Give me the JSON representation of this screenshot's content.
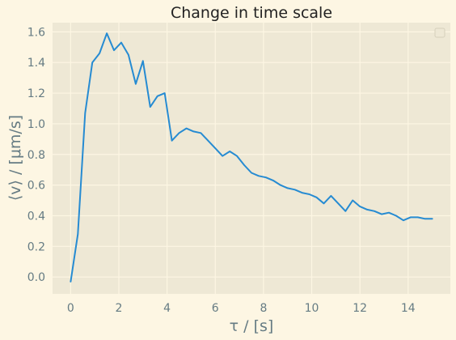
{
  "chart_data": {
    "type": "line",
    "title": "Change in time scale",
    "xlabel": "τ / [s]",
    "ylabel": "⟨v⟩ / [μm/s]",
    "xlim": [
      -0.75,
      15.75
    ],
    "ylim": [
      -0.11,
      1.66
    ],
    "xticks": [
      0,
      2,
      4,
      6,
      8,
      10,
      12,
      14
    ],
    "xtick_labels": [
      "0",
      "2",
      "4",
      "6",
      "8",
      "10",
      "12",
      "14"
    ],
    "yticks": [
      0.0,
      0.2,
      0.4,
      0.6,
      0.8,
      1.0,
      1.2,
      1.4,
      1.6
    ],
    "ytick_labels": [
      "0.0",
      "0.2",
      "0.4",
      "0.6",
      "0.8",
      "1.0",
      "1.2",
      "1.4",
      "1.6"
    ],
    "grid": true,
    "legend": "top-right",
    "colors": {
      "background": "#fdf6e3",
      "plot_background": "#eee8d5",
      "grid": "#fdf6e3",
      "line": "#268bd2",
      "text": "#657b83",
      "title": "#222222"
    },
    "series": [
      {
        "x": [
          0.0,
          0.3,
          0.6,
          0.9,
          1.2,
          1.5,
          1.8,
          2.1,
          2.4,
          2.7,
          3.0,
          3.3,
          3.6,
          3.9,
          4.2,
          4.5,
          4.8,
          5.1,
          5.4,
          5.7,
          6.0,
          6.3,
          6.6,
          6.9,
          7.2,
          7.5,
          7.8,
          8.1,
          8.4,
          8.7,
          9.0,
          9.3,
          9.6,
          9.9,
          10.2,
          10.5,
          10.8,
          11.1,
          11.4,
          11.7,
          12.0,
          12.3,
          12.6,
          12.9,
          13.2,
          13.5,
          13.8,
          14.1,
          14.4,
          14.7,
          15.0
        ],
        "values": [
          -0.03,
          0.28,
          1.07,
          1.4,
          1.46,
          1.59,
          1.48,
          1.53,
          1.45,
          1.26,
          1.41,
          1.11,
          1.18,
          1.2,
          0.89,
          0.94,
          0.97,
          0.95,
          0.94,
          0.89,
          0.84,
          0.79,
          0.82,
          0.79,
          0.73,
          0.68,
          0.66,
          0.65,
          0.63,
          0.6,
          0.58,
          0.57,
          0.55,
          0.54,
          0.52,
          0.48,
          0.53,
          0.48,
          0.43,
          0.5,
          0.46,
          0.44,
          0.43,
          0.41,
          0.42,
          0.4,
          0.37,
          0.39,
          0.39,
          0.38,
          0.38
        ]
      }
    ]
  }
}
